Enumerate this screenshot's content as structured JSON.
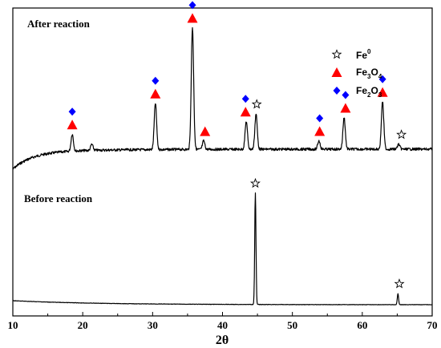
{
  "chart_data": {
    "type": "line",
    "xlabel": "2θ",
    "xlim": [
      10,
      70
    ],
    "x_ticks": [
      "10",
      "20",
      "30",
      "40",
      "50",
      "60",
      "70"
    ],
    "y_axis": "no ticks or labels",
    "grid": false,
    "legend_placement": "top-right",
    "colors": {
      "Fe0": "#000000",
      "Fe3O4": "#ff0000",
      "Fe2O3": "#0000ff",
      "line": "#000000"
    },
    "legend": [
      {
        "key": "Fe0",
        "marker": "star-outline",
        "base": "Fe",
        "sup": "0",
        "sub1": "",
        "mid": "",
        "sub2": ""
      },
      {
        "key": "Fe3O4",
        "marker": "triangle",
        "base": "Fe",
        "sup": "",
        "sub1": "3",
        "mid": "O",
        "sub2": "4"
      },
      {
        "key": "Fe2O3",
        "marker": "diamond",
        "base": "Fe",
        "sup": "",
        "sub1": "2",
        "mid": "O",
        "sub2": "3"
      }
    ],
    "series": [
      {
        "name": "After reaction",
        "peaks": [
          {
            "x": 18.5,
            "height": 0.14
          },
          {
            "x": 21.3,
            "height": 0.05
          },
          {
            "x": 30.4,
            "height": 0.38
          },
          {
            "x": 35.7,
            "height": 1.0
          },
          {
            "x": 37.3,
            "height": 0.07
          },
          {
            "x": 43.4,
            "height": 0.23
          },
          {
            "x": 44.8,
            "height": 0.29
          },
          {
            "x": 53.8,
            "height": 0.07
          },
          {
            "x": 57.4,
            "height": 0.26
          },
          {
            "x": 62.9,
            "height": 0.39
          },
          {
            "x": 65.2,
            "height": 0.04
          }
        ],
        "markers": [
          {
            "x": 18.5,
            "phases": [
              "Fe3O4",
              "Fe2O3"
            ]
          },
          {
            "x": 30.4,
            "phases": [
              "Fe3O4",
              "Fe2O3"
            ]
          },
          {
            "x": 35.7,
            "phases": [
              "Fe3O4",
              "Fe2O3"
            ]
          },
          {
            "x": 37.5,
            "phases": [
              "Fe3O4"
            ]
          },
          {
            "x": 43.3,
            "phases": [
              "Fe3O4",
              "Fe2O3"
            ]
          },
          {
            "x": 44.9,
            "phases": [
              "Fe0"
            ]
          },
          {
            "x": 53.9,
            "phases": [
              "Fe3O4",
              "Fe2O3"
            ]
          },
          {
            "x": 57.6,
            "phases": [
              "Fe3O4",
              "Fe2O3"
            ]
          },
          {
            "x": 62.9,
            "phases": [
              "Fe3O4",
              "Fe2O3"
            ]
          },
          {
            "x": 65.6,
            "phases": [
              "Fe0"
            ]
          }
        ]
      },
      {
        "name": "Before reaction",
        "peaks": [
          {
            "x": 44.7,
            "height": 1.0
          },
          {
            "x": 65.1,
            "height": 0.1
          }
        ],
        "markers": [
          {
            "x": 44.7,
            "phases": [
              "Fe0"
            ]
          },
          {
            "x": 65.3,
            "phases": [
              "Fe0"
            ]
          }
        ]
      }
    ]
  }
}
